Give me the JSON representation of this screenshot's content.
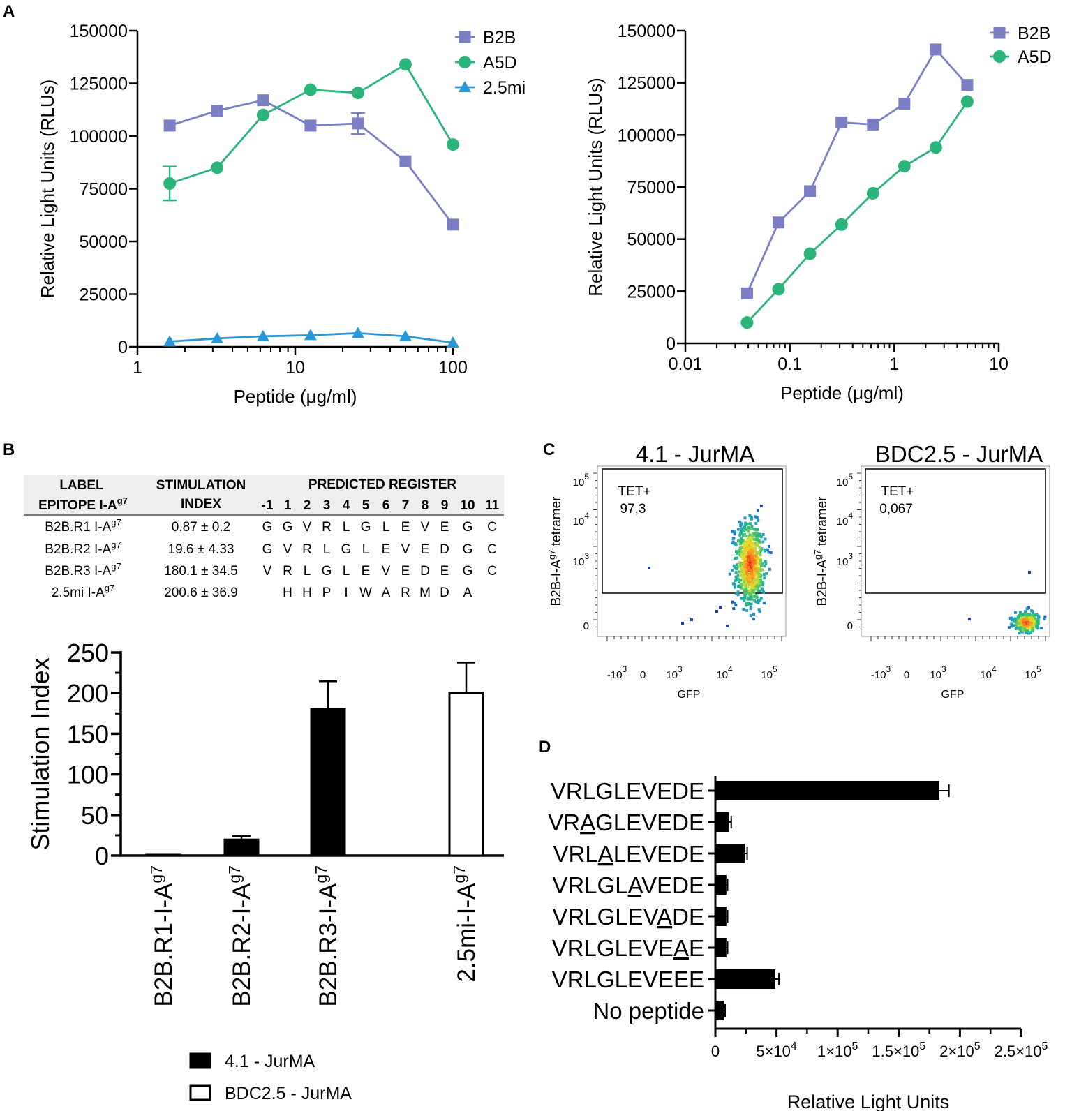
{
  "panels": {
    "A": "A",
    "B": "B",
    "C": "C",
    "D": "D"
  },
  "colors": {
    "b2b": "#7b7fc4",
    "a5d": "#2bb57a",
    "mi25": "#2a98d6",
    "black": "#000000",
    "gray_band": "#eeeeee"
  },
  "chart_data": [
    {
      "id": "A_left",
      "type": "line",
      "xscale": "log",
      "xlabel": "Peptide (μg/ml)",
      "ylabel": "Relative Light Units (RLUs)",
      "xlim": [
        1,
        100
      ],
      "ylim": [
        0,
        150000
      ],
      "xticks": [
        "1",
        "10",
        "100"
      ],
      "yticks": [
        "0",
        "25000",
        "50000",
        "75000",
        "100000",
        "125000",
        "150000"
      ],
      "legend_position": "top-right",
      "series": [
        {
          "name": "B2B",
          "marker": "square",
          "x": [
            1.6,
            3.2,
            6.25,
            12.5,
            25,
            50,
            100
          ],
          "y": [
            105000,
            112000,
            117000,
            105000,
            106000,
            88000,
            58000
          ],
          "err": [
            0,
            0,
            0,
            0,
            5000,
            0,
            0
          ]
        },
        {
          "name": "A5D",
          "marker": "circle",
          "x": [
            1.6,
            3.2,
            6.25,
            12.5,
            25,
            50,
            100
          ],
          "y": [
            77500,
            85000,
            110000,
            122000,
            120500,
            134000,
            96000
          ],
          "err": [
            8000,
            0,
            0,
            0,
            0,
            0,
            0
          ]
        },
        {
          "name": "2.5mi",
          "marker": "triangle",
          "x": [
            1.6,
            3.2,
            6.25,
            12.5,
            25,
            50,
            100
          ],
          "y": [
            2500,
            4000,
            5000,
            5500,
            6500,
            5000,
            2000
          ],
          "err": [
            0,
            0,
            0,
            0,
            0,
            0,
            0
          ]
        }
      ]
    },
    {
      "id": "A_right",
      "type": "line",
      "xscale": "log",
      "xlabel": "Peptide (μg/ml)",
      "ylabel": "Relative Light Units (RLUs)",
      "xlim": [
        0.01,
        10
      ],
      "ylim": [
        0,
        150000
      ],
      "xticks": [
        "0.01",
        "0.1",
        "1",
        "10"
      ],
      "yticks": [
        "0",
        "25000",
        "50000",
        "75000",
        "100000",
        "125000",
        "150000"
      ],
      "legend_position": "top-right",
      "series": [
        {
          "name": "B2B",
          "marker": "square",
          "x": [
            0.039,
            0.078,
            0.156,
            0.3125,
            0.625,
            1.25,
            2.5,
            5
          ],
          "y": [
            24000,
            58000,
            73000,
            106000,
            105000,
            115000,
            141000,
            124000
          ]
        },
        {
          "name": "A5D",
          "marker": "circle",
          "x": [
            0.039,
            0.078,
            0.156,
            0.3125,
            0.625,
            1.25,
            2.5,
            5
          ],
          "y": [
            10000,
            26000,
            43000,
            57000,
            72000,
            85000,
            94000,
            116000
          ]
        }
      ]
    },
    {
      "id": "B_bar",
      "type": "bar",
      "ylabel": "Stimulation Index",
      "ylim": [
        0,
        250
      ],
      "yticks": [
        "0",
        "50",
        "100",
        "150",
        "200",
        "250"
      ],
      "categories": [
        "B2B.R1-I-A",
        "B2B.R2-I-A",
        "B2B.R3-I-A",
        "2.5mi-I-A"
      ],
      "category_sup": "g7",
      "values": [
        0.87,
        19.6,
        180.1,
        200.6
      ],
      "errors": [
        0.2,
        4.33,
        34.5,
        36.9
      ],
      "groups": [
        "4.1 - JurMA",
        "4.1 - JurMA",
        "4.1 - JurMA",
        "BDC2.5 - JurMA"
      ],
      "legend": [
        {
          "label": "4.1 - JurMA",
          "fill": "black"
        },
        {
          "label": "BDC2.5 - JurMA",
          "fill": "white"
        }
      ]
    },
    {
      "id": "C_flow",
      "type": "scatter",
      "xlabel": "GFP",
      "ylabel": "B2B-I-A",
      "ylabel_sup": "g7",
      "ylabel_tail": " tetramer",
      "plots": [
        {
          "title": "4.1 - JurMA",
          "gate_label": "TET+",
          "gate_value": "97,3"
        },
        {
          "title": "BDC2.5 - JurMA",
          "gate_label": "TET+",
          "gate_value": "0,067"
        }
      ],
      "yticks": [
        {
          "base": "10",
          "exp": "5"
        },
        {
          "base": "10",
          "exp": "4"
        },
        {
          "base": "10",
          "exp": "3"
        },
        {
          "base": "0",
          "exp": ""
        }
      ],
      "xticks": [
        {
          "base": "-10",
          "exp": "3"
        },
        {
          "base": "0",
          "exp": ""
        },
        {
          "base": "10",
          "exp": "3"
        },
        {
          "base": "10",
          "exp": "4"
        },
        {
          "base": "10",
          "exp": "5"
        }
      ]
    },
    {
      "id": "D_hbar",
      "type": "bar",
      "orientation": "horizontal",
      "xlabel": "Relative Light Units",
      "xlim": [
        0,
        250000
      ],
      "xticks": [
        "0",
        "5×10",
        "1×10",
        "1.5×10",
        "2×10",
        "2.5×10"
      ],
      "xtick_exps": [
        "",
        "4",
        "5",
        "5",
        "5",
        "5"
      ],
      "categories": [
        {
          "pre": "VRLGLEVEDE",
          "u": "",
          "post": ""
        },
        {
          "pre": "VR",
          "u": "A",
          "post": "GLEVEDE"
        },
        {
          "pre": "VRL",
          "u": "A",
          "post": "LEVEDE"
        },
        {
          "pre": "VRLGL",
          "u": "A",
          "post": "VEDE"
        },
        {
          "pre": "VRLGLEV",
          "u": "A",
          "post": "DE"
        },
        {
          "pre": "VRLGLEVE",
          "u": "A",
          "post": "E"
        },
        {
          "pre": "VRLGLEVEEE",
          "u": "",
          "post": ""
        },
        {
          "pre": "No peptide",
          "u": "",
          "post": ""
        }
      ],
      "values": [
        183000,
        11000,
        24000,
        9000,
        9000,
        9000,
        49000,
        7000
      ],
      "errors": [
        8000,
        2000,
        2000,
        1000,
        1000,
        1000,
        3000,
        1000
      ]
    }
  ],
  "table": {
    "header": {
      "label1": "LABEL",
      "label2": "EPITOPE I-A",
      "label2_sup": "g7",
      "stim1": "STIMULATION",
      "stim2": "INDEX",
      "register": "PREDICTED REGISTER",
      "positions": [
        "-1",
        "1",
        "2",
        "3",
        "4",
        "5",
        "6",
        "7",
        "8",
        "9",
        "10",
        "11"
      ]
    },
    "rows": [
      {
        "label": "B2B.R1 I-A",
        "sup": "g7",
        "index": "0.87 ± 0.2",
        "residues": [
          "G",
          "G",
          "V",
          "R",
          "L",
          "G",
          "L",
          "E",
          "V",
          "E",
          "G",
          "C"
        ]
      },
      {
        "label": "B2B.R2 I-A",
        "sup": "g7",
        "index": "19.6 ± 4.33",
        "residues": [
          "G",
          "V",
          "R",
          "L",
          "G",
          "L",
          "E",
          "V",
          "E",
          "D",
          "G",
          "C"
        ]
      },
      {
        "label": "B2B.R3 I-A",
        "sup": "g7",
        "index": "180.1 ± 34.5",
        "residues": [
          "V",
          "R",
          "L",
          "G",
          "L",
          "E",
          "V",
          "E",
          "D",
          "E",
          "G",
          "C"
        ]
      },
      {
        "label": "2.5mi I-A",
        "sup": "g7",
        "index": "200.6 ± 36.9",
        "residues": [
          "",
          "H",
          "H",
          "P",
          "I",
          "W",
          "A",
          "R",
          "M",
          "D",
          "A",
          ""
        ]
      }
    ]
  }
}
